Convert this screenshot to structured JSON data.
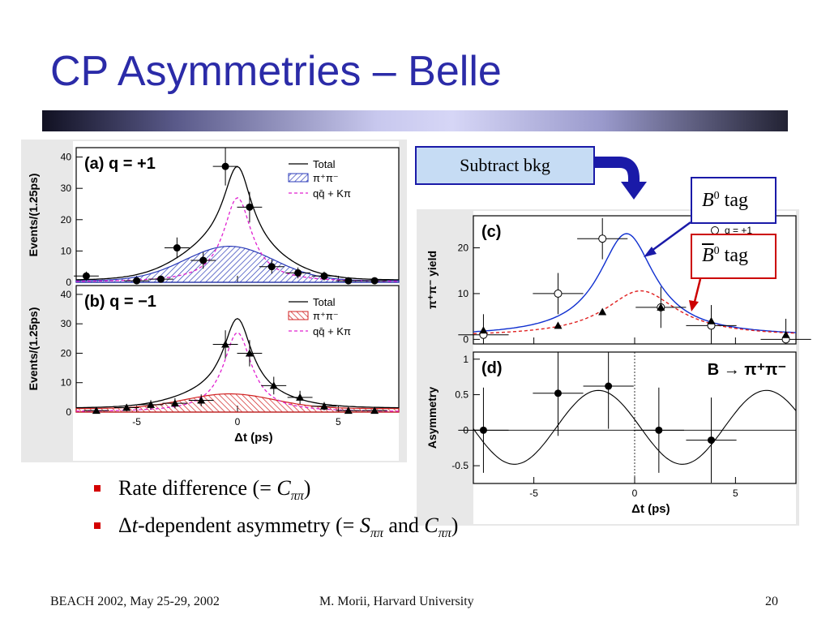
{
  "title": "CP Asymmetries – Belle",
  "bullets": [
    {
      "pre": "Rate difference (= ",
      "sym": "C",
      "sub": "ππ",
      "post": ")"
    },
    {
      "pre": "Δ",
      "t": "t",
      "mid": "-dependent asymmetry (= ",
      "sym1": "S",
      "sub1": "ππ",
      "and": " and ",
      "sym2": "C",
      "sub2": "ππ",
      "post": ")"
    }
  ],
  "callouts": {
    "subtract": "Subtract bkg",
    "b0": {
      "sym": "B",
      "sup": "0",
      "word": "tag"
    },
    "b0bar": {
      "sym": "B",
      "sup": "0",
      "word": "tag"
    }
  },
  "footer": {
    "left": "BEACH 2002, May 25-29, 2002",
    "center": "M. Morii, Harvard University",
    "page": "20"
  },
  "colors": {
    "title": "#2b2ba8",
    "bullet": "#d40000",
    "callout_blue_border": "#1a1aa8",
    "callout_red_border": "#cc0000",
    "subtract_fill": "#c6dcf4",
    "blue_curve": "#1030d0",
    "red_curve": "#e02020",
    "magenta": "#e020d0"
  },
  "chart_data": [
    {
      "type": "scatter",
      "panel_label": "(a) q = +1",
      "ylabel": "Events/(1.25ps)",
      "xlim": [
        -8,
        8
      ],
      "ylim": [
        0,
        43
      ],
      "yticks": [
        0,
        10,
        20,
        30,
        40
      ],
      "legend": [
        "Total",
        "π⁺π⁻",
        "qq̄ + Kπ"
      ],
      "points": [
        {
          "x": -7.5,
          "y": 2
        },
        {
          "x": -5,
          "y": 0.5
        },
        {
          "x": -3.8,
          "y": 1
        },
        {
          "x": -3.0,
          "y": 11
        },
        {
          "x": -1.7,
          "y": 7
        },
        {
          "x": -0.6,
          "y": 37
        },
        {
          "x": 0.6,
          "y": 24
        },
        {
          "x": 1.7,
          "y": 5
        },
        {
          "x": 3.0,
          "y": 3
        },
        {
          "x": 4.3,
          "y": 2
        },
        {
          "x": 5.5,
          "y": 0.5
        },
        {
          "x": 6.8,
          "y": 0.5
        }
      ],
      "signal_peak": 11,
      "bkg_peak": 27
    },
    {
      "type": "scatter",
      "panel_label": "(b) q = −1",
      "ylabel": "Events/(1.25ps)",
      "xlabel": "Δt (ps)",
      "xlim": [
        -8,
        8
      ],
      "ylim": [
        0,
        43
      ],
      "xticks": [
        -5,
        0,
        5
      ],
      "yticks": [
        0,
        10,
        20,
        30,
        40
      ],
      "legend": [
        "Total",
        "π⁺π⁻",
        "qq̄ + Kπ"
      ],
      "points": [
        {
          "x": -7,
          "y": 0.5
        },
        {
          "x": -5.5,
          "y": 1.5
        },
        {
          "x": -4.3,
          "y": 2.5
        },
        {
          "x": -3.1,
          "y": 3
        },
        {
          "x": -1.8,
          "y": 4
        },
        {
          "x": -0.6,
          "y": 23
        },
        {
          "x": 0.6,
          "y": 20
        },
        {
          "x": 1.8,
          "y": 9
        },
        {
          "x": 3.1,
          "y": 5
        },
        {
          "x": 4.3,
          "y": 2
        },
        {
          "x": 5.5,
          "y": 0.5
        },
        {
          "x": 6.8,
          "y": 0.5
        }
      ],
      "signal_peak": 5,
      "bkg_peak": 27
    },
    {
      "type": "scatter",
      "panel_label": "(c)",
      "ylabel": "π⁺π⁻ yield",
      "legend": [
        "q = +1"
      ],
      "xlim": [
        -8,
        8
      ],
      "ylim": [
        -1,
        27
      ],
      "yticks": [
        0,
        10,
        20
      ],
      "open_points": [
        {
          "x": -7.5,
          "y": 1
        },
        {
          "x": -3.8,
          "y": 10
        },
        {
          "x": -1.6,
          "y": 22
        },
        {
          "x": 1.3,
          "y": 7
        },
        {
          "x": 3.8,
          "y": 3
        },
        {
          "x": 7.5,
          "y": 0
        }
      ],
      "filled_points": [
        {
          "x": -7.5,
          "y": 2
        },
        {
          "x": -3.8,
          "y": 3
        },
        {
          "x": -1.6,
          "y": 6
        },
        {
          "x": 1.3,
          "y": 7
        },
        {
          "x": 3.8,
          "y": 4
        },
        {
          "x": 7.5,
          "y": 1
        }
      ]
    },
    {
      "type": "scatter",
      "panel_label": "(d)",
      "annotation": "B → π⁺π⁻",
      "ylabel": "Asymmetry",
      "xlabel": "Δt (ps)",
      "xlim": [
        -8,
        8
      ],
      "ylim": [
        -0.75,
        1.1
      ],
      "xticks": [
        -5,
        0,
        5
      ],
      "yticks": [
        -0.5,
        0,
        0.5,
        1
      ],
      "points": [
        {
          "x": -7.5,
          "y": 0
        },
        {
          "x": -3.8,
          "y": 0.52
        },
        {
          "x": -1.3,
          "y": 0.62
        },
        {
          "x": 1.2,
          "y": 0
        },
        {
          "x": 3.8,
          "y": -0.14
        }
      ]
    }
  ]
}
